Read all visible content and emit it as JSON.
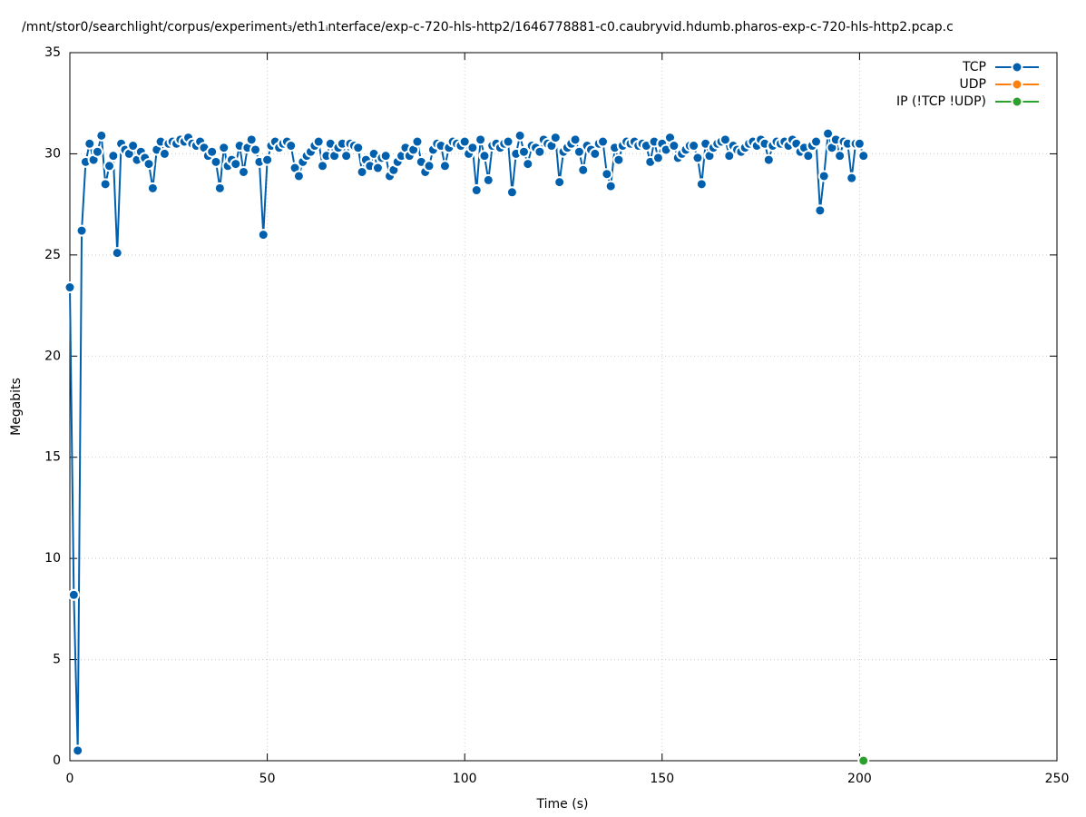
{
  "chart_data": {
    "type": "line",
    "title": "/mnt/stor0/searchlight/corpus/experiment₃/eth1ᵢnterface/exp-c-720-hls-http2/1646778881-c0.caubryvid.hdumb.pharos-exp-c-720-hls-http2.pcap.c",
    "x_label": "Time (s)",
    "y_label": "Megabits",
    "xlim": [
      0,
      250
    ],
    "xticks": [
      0,
      50,
      100,
      150,
      200,
      250
    ],
    "ylim": [
      0,
      35
    ],
    "yticks": [
      0,
      5,
      10,
      15,
      20,
      25,
      30,
      35
    ],
    "grid": true,
    "legend": "top-right",
    "series": [
      {
        "name": "TCP",
        "color": "#0060ad",
        "x": [
          0,
          1,
          2,
          3,
          4,
          5,
          6,
          7,
          8,
          9,
          10,
          11,
          12,
          13,
          14,
          15,
          16,
          17,
          18,
          19,
          20,
          21,
          22,
          23,
          24,
          25,
          26,
          27,
          28,
          29,
          30,
          31,
          32,
          33,
          34,
          35,
          36,
          37,
          38,
          39,
          40,
          41,
          42,
          43,
          44,
          45,
          46,
          47,
          48,
          49,
          50,
          51,
          52,
          53,
          54,
          55,
          56,
          57,
          58,
          59,
          60,
          61,
          62,
          63,
          64,
          65,
          66,
          67,
          68,
          69,
          70,
          71,
          72,
          73,
          74,
          75,
          76,
          77,
          78,
          79,
          80,
          81,
          82,
          83,
          84,
          85,
          86,
          87,
          88,
          89,
          90,
          91,
          92,
          93,
          94,
          95,
          96,
          97,
          98,
          99,
          100,
          101,
          102,
          103,
          104,
          105,
          106,
          107,
          108,
          109,
          110,
          111,
          112,
          113,
          114,
          115,
          116,
          117,
          118,
          119,
          120,
          121,
          122,
          123,
          124,
          125,
          126,
          127,
          128,
          129,
          130,
          131,
          132,
          133,
          134,
          135,
          136,
          137,
          138,
          139,
          140,
          141,
          142,
          143,
          144,
          145,
          146,
          147,
          148,
          149,
          150,
          151,
          152,
          153,
          154,
          155,
          156,
          157,
          158,
          159,
          160,
          161,
          162,
          163,
          164,
          165,
          166,
          167,
          168,
          169,
          170,
          171,
          172,
          173,
          174,
          175,
          176,
          177,
          178,
          179,
          180,
          181,
          182,
          183,
          184,
          185,
          186,
          187,
          188,
          189,
          190,
          191,
          192,
          193,
          194,
          195,
          196,
          197,
          198,
          199,
          200,
          201
        ],
        "values": [
          23.4,
          8.2,
          0.5,
          26.2,
          29.6,
          30.5,
          29.7,
          30.1,
          30.9,
          28.5,
          29.4,
          29.9,
          25.1,
          30.5,
          30.2,
          30.0,
          30.4,
          29.7,
          30.1,
          29.8,
          29.5,
          28.3,
          30.2,
          30.6,
          30.0,
          30.5,
          30.6,
          30.5,
          30.7,
          30.6,
          30.8,
          30.5,
          30.4,
          30.6,
          30.3,
          29.9,
          30.1,
          29.6,
          28.3,
          30.3,
          29.4,
          29.7,
          29.5,
          30.4,
          29.1,
          30.3,
          30.7,
          30.2,
          29.6,
          26.0,
          29.7,
          30.4,
          30.6,
          30.3,
          30.5,
          30.6,
          30.4,
          29.3,
          28.9,
          29.6,
          29.9,
          30.1,
          30.4,
          30.6,
          29.4,
          29.9,
          30.5,
          29.9,
          30.3,
          30.5,
          29.9,
          30.5,
          30.4,
          30.3,
          29.1,
          29.7,
          29.4,
          30.0,
          29.3,
          29.8,
          29.9,
          28.9,
          29.2,
          29.6,
          29.9,
          30.3,
          29.9,
          30.2,
          30.6,
          29.6,
          29.1,
          29.4,
          30.2,
          30.5,
          30.4,
          29.4,
          30.3,
          30.6,
          30.5,
          30.4,
          30.6,
          30.0,
          30.3,
          28.2,
          30.7,
          29.9,
          28.7,
          30.4,
          30.5,
          30.3,
          30.5,
          30.6,
          28.1,
          30.0,
          30.9,
          30.1,
          29.5,
          30.4,
          30.3,
          30.1,
          30.7,
          30.5,
          30.4,
          30.8,
          28.6,
          30.1,
          30.3,
          30.5,
          30.7,
          30.1,
          29.2,
          30.4,
          30.2,
          30.0,
          30.5,
          30.6,
          29.0,
          28.4,
          30.3,
          29.7,
          30.4,
          30.6,
          30.5,
          30.6,
          30.4,
          30.5,
          30.4,
          29.6,
          30.6,
          29.8,
          30.5,
          30.2,
          30.8,
          30.4,
          29.8,
          30.0,
          30.2,
          30.4,
          30.4,
          29.8,
          28.5,
          30.5,
          29.9,
          30.3,
          30.5,
          30.6,
          30.7,
          29.9,
          30.4,
          30.2,
          30.1,
          30.3,
          30.5,
          30.6,
          30.4,
          30.7,
          30.5,
          29.7,
          30.4,
          30.6,
          30.5,
          30.6,
          30.4,
          30.7,
          30.5,
          30.1,
          30.3,
          29.9,
          30.4,
          30.6,
          27.2,
          28.9,
          31.0,
          30.3,
          30.7,
          29.9,
          30.6,
          30.5,
          28.8,
          30.5,
          30.5,
          29.9
        ]
      },
      {
        "name": "UDP",
        "color": "#ff7f0e",
        "x": [],
        "values": []
      },
      {
        "name": "IP (!TCP  !UDP)",
        "color": "#2ca02c",
        "x": [
          201
        ],
        "values": [
          0
        ]
      }
    ]
  }
}
